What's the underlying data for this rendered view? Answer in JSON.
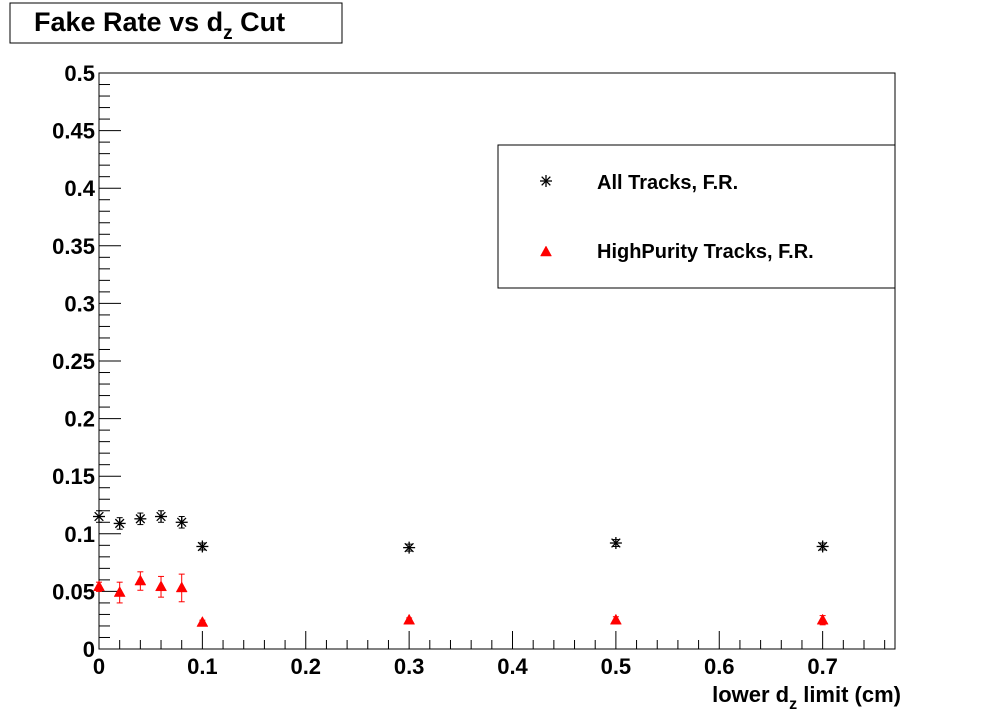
{
  "chart_data": {
    "type": "scatter",
    "title": "Fake Rate vs d",
    "title_subscript": "z",
    "title_suffix": " Cut",
    "xlabel": "lower d",
    "xlabel_subscript": "z",
    "xlabel_suffix": " limit (cm)",
    "ylabel": "",
    "xlim": [
      0,
      0.77
    ],
    "ylim": [
      0,
      0.5
    ],
    "grid": false,
    "legend_position": "top-right",
    "x_ticks": [
      "0",
      "0.1",
      "0.2",
      "0.3",
      "0.4",
      "0.5",
      "0.6",
      "0.7"
    ],
    "y_ticks": [
      "0",
      "0.05",
      "0.1",
      "0.15",
      "0.2",
      "0.25",
      "0.3",
      "0.35",
      "0.4",
      "0.45",
      "0.5"
    ],
    "series": [
      {
        "name": "All Tracks, F.R.",
        "marker": "star",
        "color": "#000000",
        "x": [
          0,
          0.02,
          0.04,
          0.06,
          0.08,
          0.1,
          0.3,
          0.5,
          0.7
        ],
        "y": [
          0.115,
          0.109,
          0.113,
          0.115,
          0.11,
          0.089,
          0.088,
          0.092,
          0.089
        ],
        "err": [
          0.005,
          0.005,
          0.005,
          0.005,
          0.005,
          0.003,
          0.003,
          0.003,
          0.003
        ]
      },
      {
        "name": "HighPurity Tracks, F.R.",
        "marker": "triangle",
        "color": "#ff0000",
        "x": [
          0,
          0.02,
          0.04,
          0.06,
          0.08,
          0.1,
          0.3,
          0.5,
          0.7
        ],
        "y": [
          0.054,
          0.049,
          0.059,
          0.054,
          0.053,
          0.023,
          0.025,
          0.025,
          0.025
        ],
        "err": [
          0.004,
          0.009,
          0.008,
          0.009,
          0.012,
          0.002,
          0.002,
          0.003,
          0.004
        ]
      }
    ]
  }
}
